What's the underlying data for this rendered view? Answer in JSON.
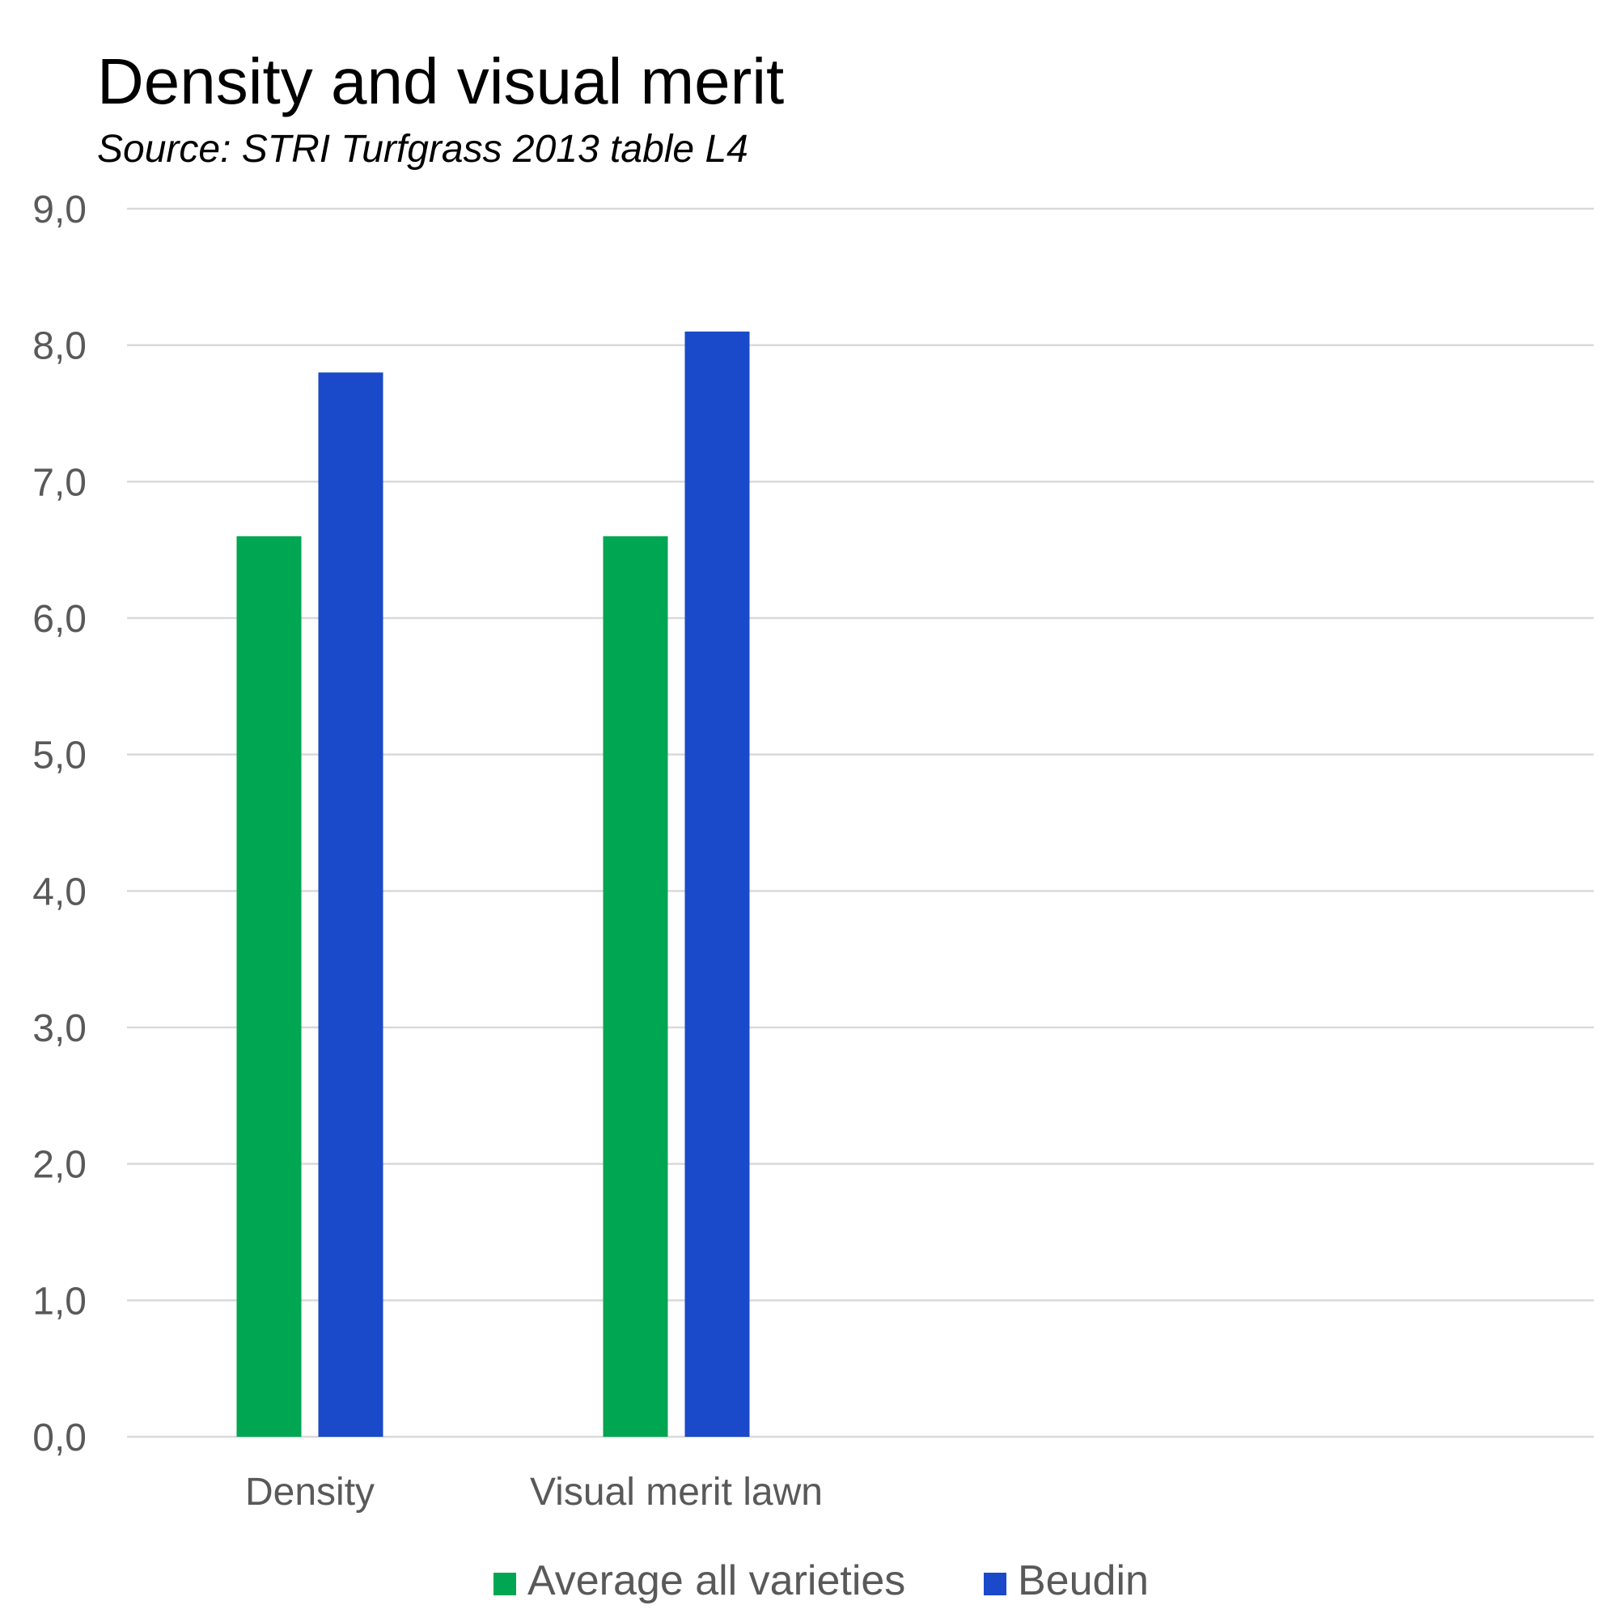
{
  "chart_data": {
    "type": "bar",
    "title": "Density and visual merit",
    "subtitle": "Source: STRI Turfgrass 2013 table L4",
    "xlabel": "",
    "ylabel": "",
    "categories": [
      "Density",
      "Visual merit lawn"
    ],
    "series": [
      {
        "name": "Average all varieties",
        "values": [
          6.6,
          6.6
        ],
        "color": "#00a651"
      },
      {
        "name": "Beudin",
        "values": [
          7.8,
          8.1
        ],
        "color": "#1a49c9"
      }
    ],
    "ylim": [
      0,
      9
    ],
    "yticks": [
      "0,0",
      "1,0",
      "2,0",
      "3,0",
      "4,0",
      "5,0",
      "6,0",
      "7,0",
      "8,0",
      "9,0"
    ],
    "grid": true,
    "legend_position": "bottom",
    "colors": {
      "gridline": "#d9d9d9",
      "tick_text": "#595959",
      "title_text": "#000000"
    }
  }
}
